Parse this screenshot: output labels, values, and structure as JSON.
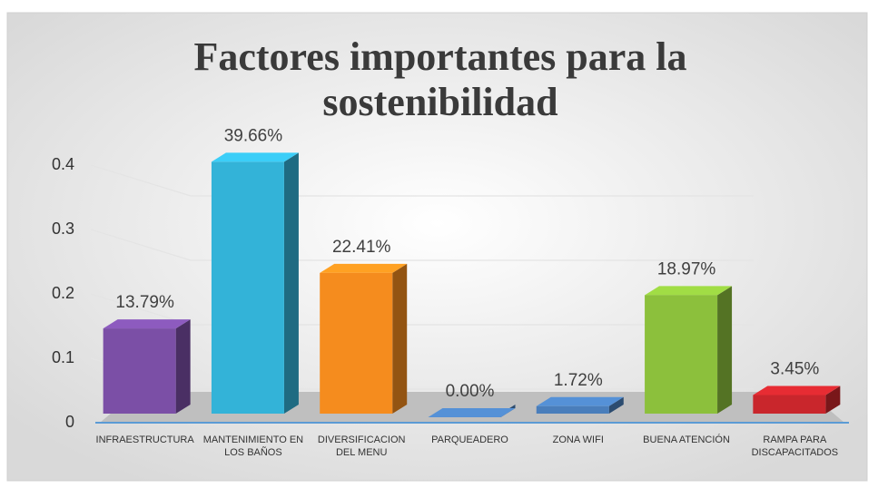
{
  "chart_data": {
    "type": "bar3d",
    "title": "Factores importantes para la sostenibilidad",
    "categories": [
      "INFRAESTRUCTURA",
      "MANTENIMIENTO EN LOS BAÑOS",
      "DIVERSIFICACION DEL MENU",
      "PARQUEADERO",
      "ZONA WIFI",
      "BUENA ATENCIÓN",
      "RAMPA PARA DISCAPACITADOS"
    ],
    "values": [
      0.1379,
      0.3966,
      0.2241,
      0,
      0.0172,
      0.1897,
      0.0345
    ],
    "value_labels": [
      "13.79%",
      "39.66%",
      "22.41%",
      "0.00%",
      "1.72%",
      "18.97%",
      "3.45%"
    ],
    "colors": [
      "#7b4fa6",
      "#33b3d8",
      "#f58c1e",
      "#4a7ebb",
      "#4a7ebb",
      "#8cc03c",
      "#c9262c"
    ],
    "ylim": [
      0,
      0.4
    ],
    "yticks": [
      0,
      0.1,
      0.2,
      0.3,
      0.4
    ],
    "grid": true
  }
}
